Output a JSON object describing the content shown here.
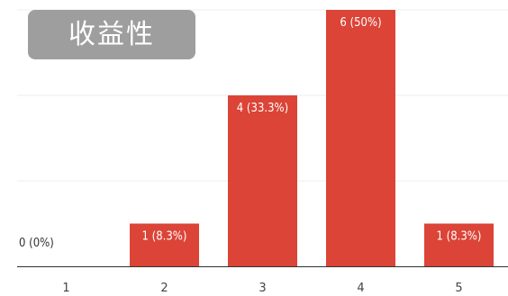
{
  "overlay": {
    "label": "收益性"
  },
  "chart_data": {
    "type": "bar",
    "categories": [
      "1",
      "2",
      "3",
      "4",
      "5"
    ],
    "values": [
      0,
      1,
      4,
      6,
      1
    ],
    "data_labels": [
      "0 (0%)",
      "1 (8.3%)",
      "4 (33.3%)",
      "6 (50%)",
      "1 (8.3%)"
    ],
    "ylim": [
      0,
      6
    ],
    "grid": true,
    "colors": {
      "bar": "#db4437",
      "label_on_bar": "#ffffff",
      "label_off_bar": "#333333",
      "grid": "#eeeeee",
      "axis": "#333333",
      "tick": "#444444"
    }
  }
}
